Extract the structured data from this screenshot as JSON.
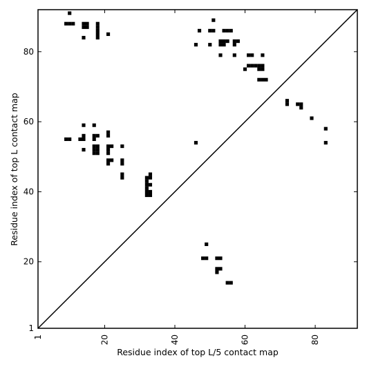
{
  "chart_data": {
    "type": "heatmap",
    "title": "",
    "xlabel": "Residue index of top L/5 contact map",
    "ylabel": "Residue index of top L contact map",
    "xlim": [
      1,
      92
    ],
    "ylim": [
      1,
      92
    ],
    "xticks": [
      {
        "value": 1,
        "label": "1"
      },
      {
        "value": 20,
        "label": "20"
      },
      {
        "value": 40,
        "label": "40"
      },
      {
        "value": 60,
        "label": "60"
      },
      {
        "value": 80,
        "label": "80"
      }
    ],
    "yticks": [
      {
        "value": 1,
        "label": "1"
      },
      {
        "value": 20,
        "label": "20"
      },
      {
        "value": 40,
        "label": "40"
      },
      {
        "value": 60,
        "label": "60"
      },
      {
        "value": 80,
        "label": "80"
      }
    ],
    "x_tick_rotation": 270,
    "diagonal": true,
    "grid": false,
    "cell_color": "#000000",
    "upper_contacts": [
      [
        10,
        91
      ],
      [
        9,
        88
      ],
      [
        10,
        88
      ],
      [
        11,
        88
      ],
      [
        14,
        88
      ],
      [
        15,
        88
      ],
      [
        14,
        87
      ],
      [
        15,
        87
      ],
      [
        18,
        88
      ],
      [
        18,
        87
      ],
      [
        18,
        86
      ],
      [
        18,
        85
      ],
      [
        18,
        84
      ],
      [
        14,
        84
      ],
      [
        21,
        85
      ],
      [
        51,
        89
      ],
      [
        47,
        86
      ],
      [
        50,
        86
      ],
      [
        51,
        86
      ],
      [
        54,
        86
      ],
      [
        55,
        86
      ],
      [
        56,
        86
      ],
      [
        53,
        83
      ],
      [
        54,
        83
      ],
      [
        55,
        83
      ],
      [
        57,
        83
      ],
      [
        58,
        83
      ],
      [
        53,
        82
      ],
      [
        54,
        82
      ],
      [
        46,
        82
      ],
      [
        50,
        82
      ],
      [
        57,
        82
      ],
      [
        53,
        79
      ],
      [
        57,
        79
      ],
      [
        61,
        79
      ],
      [
        62,
        79
      ],
      [
        65,
        79
      ],
      [
        61,
        76
      ],
      [
        62,
        76
      ],
      [
        63,
        76
      ],
      [
        64,
        76
      ],
      [
        65,
        76
      ],
      [
        64,
        75
      ],
      [
        65,
        75
      ],
      [
        60,
        75
      ],
      [
        64,
        72
      ],
      [
        65,
        72
      ],
      [
        66,
        72
      ],
      [
        72,
        66
      ],
      [
        72,
        65
      ],
      [
        75,
        65
      ],
      [
        76,
        65
      ],
      [
        76,
        64
      ],
      [
        79,
        61
      ],
      [
        83,
        58
      ],
      [
        83,
        54
      ]
    ],
    "lower_contacts": [
      [
        14,
        59
      ],
      [
        17,
        59
      ],
      [
        21,
        57
      ],
      [
        21,
        56
      ],
      [
        17,
        56
      ],
      [
        18,
        56
      ],
      [
        14,
        56
      ],
      [
        9,
        55
      ],
      [
        10,
        55
      ],
      [
        13,
        55
      ],
      [
        14,
        55
      ],
      [
        17,
        55
      ],
      [
        17,
        53
      ],
      [
        18,
        53
      ],
      [
        21,
        53
      ],
      [
        22,
        53
      ],
      [
        25,
        53
      ],
      [
        17,
        52
      ],
      [
        18,
        52
      ],
      [
        14,
        52
      ],
      [
        21,
        52
      ],
      [
        17,
        51
      ],
      [
        18,
        51
      ],
      [
        21,
        51
      ],
      [
        21,
        49
      ],
      [
        22,
        49
      ],
      [
        25,
        49
      ],
      [
        21,
        48
      ],
      [
        25,
        48
      ],
      [
        25,
        45
      ],
      [
        25,
        44
      ],
      [
        33,
        45
      ],
      [
        32,
        44
      ],
      [
        33,
        44
      ],
      [
        32,
        43
      ],
      [
        32,
        42
      ],
      [
        33,
        42
      ],
      [
        32,
        41
      ],
      [
        32,
        40
      ],
      [
        33,
        40
      ],
      [
        32,
        39
      ],
      [
        33,
        39
      ],
      [
        46,
        54
      ],
      [
        49,
        25
      ],
      [
        48,
        21
      ],
      [
        49,
        21
      ],
      [
        52,
        21
      ],
      [
        53,
        21
      ],
      [
        52,
        18
      ],
      [
        53,
        18
      ],
      [
        52,
        17
      ],
      [
        55,
        14
      ],
      [
        56,
        14
      ]
    ]
  }
}
